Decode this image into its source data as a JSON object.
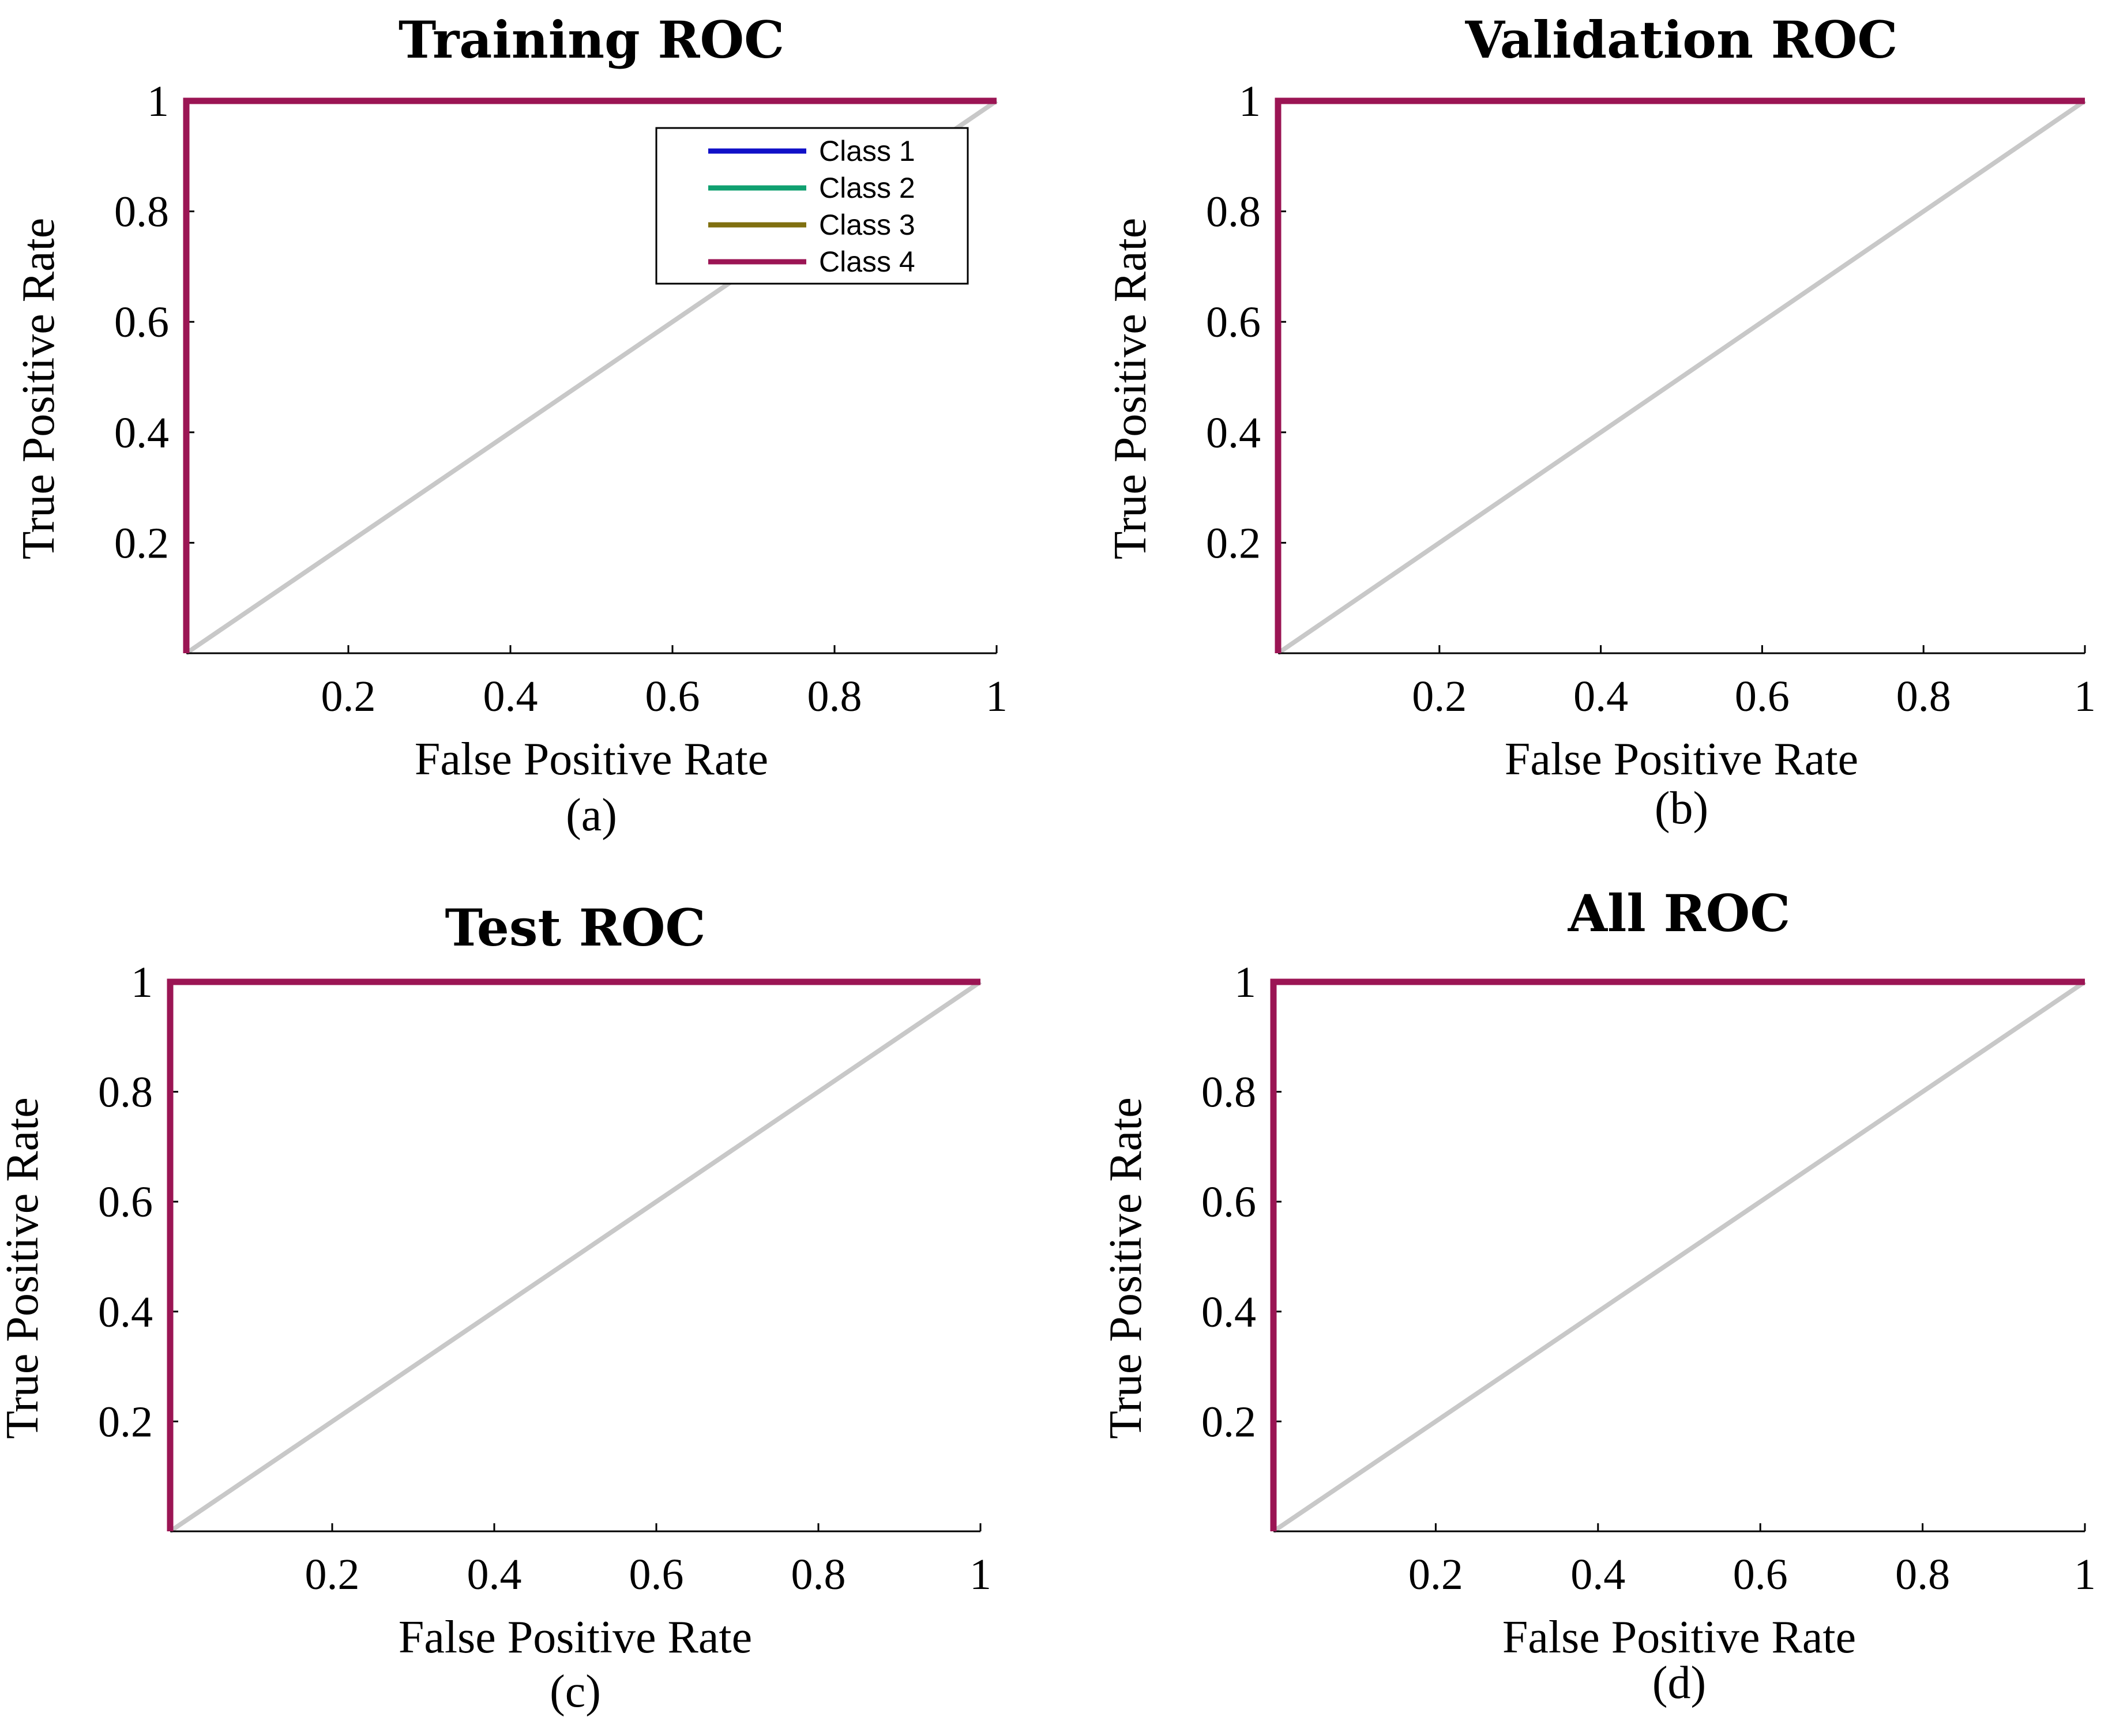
{
  "colors": {
    "class1": "#1010c8",
    "class2": "#10a070",
    "class3": "#807010",
    "class4": "#9b1554",
    "diagonal": "#c8c8c8",
    "axis": "#000000"
  },
  "chart_data": [
    {
      "type": "line",
      "panel": "a",
      "title": "Training ROC",
      "caption": "(a)",
      "xlabel": "False Positive Rate",
      "ylabel": "True Positive Rate",
      "xlim": [
        0,
        1
      ],
      "ylim": [
        0,
        1
      ],
      "xticks": [
        "0.2",
        "0.4",
        "0.6",
        "0.8",
        "1"
      ],
      "yticks": [
        "0.2",
        "0.4",
        "0.6",
        "0.8",
        "1"
      ],
      "legend": {
        "show": true,
        "location": "top-right",
        "entries": [
          "Class 1",
          "Class 2",
          "Class 3",
          "Class 4"
        ]
      },
      "series": [
        {
          "name": "Class 1",
          "color_key": "class1",
          "x": [
            0,
            0,
            1
          ],
          "y": [
            0,
            1,
            1
          ]
        },
        {
          "name": "Class 2",
          "color_key": "class2",
          "x": [
            0,
            0,
            1
          ],
          "y": [
            0,
            1,
            1
          ]
        },
        {
          "name": "Class 3",
          "color_key": "class3",
          "x": [
            0,
            0,
            1
          ],
          "y": [
            0,
            1,
            1
          ]
        },
        {
          "name": "Class 4",
          "color_key": "class4",
          "x": [
            0,
            0,
            1
          ],
          "y": [
            0,
            1,
            1
          ]
        }
      ],
      "reference_line": {
        "x": [
          0,
          1
        ],
        "y": [
          0,
          1
        ]
      }
    },
    {
      "type": "line",
      "panel": "b",
      "title": "Validation ROC",
      "caption": "(b)",
      "xlabel": "False Positive Rate",
      "ylabel": "True Positive Rate",
      "xlim": [
        0,
        1
      ],
      "ylim": [
        0,
        1
      ],
      "xticks": [
        "0.2",
        "0.4",
        "0.6",
        "0.8",
        "1"
      ],
      "yticks": [
        "0.2",
        "0.4",
        "0.6",
        "0.8",
        "1"
      ],
      "legend": {
        "show": false
      },
      "series": [
        {
          "name": "Class 1",
          "color_key": "class1",
          "x": [
            0,
            0,
            1
          ],
          "y": [
            0,
            1,
            1
          ]
        },
        {
          "name": "Class 2",
          "color_key": "class2",
          "x": [
            0,
            0,
            1
          ],
          "y": [
            0,
            1,
            1
          ]
        },
        {
          "name": "Class 3",
          "color_key": "class3",
          "x": [
            0,
            0,
            1
          ],
          "y": [
            0,
            1,
            1
          ]
        },
        {
          "name": "Class 4",
          "color_key": "class4",
          "x": [
            0,
            0,
            1
          ],
          "y": [
            0,
            1,
            1
          ]
        }
      ],
      "reference_line": {
        "x": [
          0,
          1
        ],
        "y": [
          0,
          1
        ]
      }
    },
    {
      "type": "line",
      "panel": "c",
      "title": "Test ROC",
      "caption": "(c)",
      "xlabel": "False Positive Rate",
      "ylabel": "True Positive Rate",
      "xlim": [
        0,
        1
      ],
      "ylim": [
        0,
        1
      ],
      "xticks": [
        "0.2",
        "0.4",
        "0.6",
        "0.8",
        "1"
      ],
      "yticks": [
        "0.2",
        "0.4",
        "0.6",
        "0.8",
        "1"
      ],
      "legend": {
        "show": false
      },
      "series": [
        {
          "name": "Class 1",
          "color_key": "class1",
          "x": [
            0,
            0,
            1
          ],
          "y": [
            0,
            1,
            1
          ]
        },
        {
          "name": "Class 2",
          "color_key": "class2",
          "x": [
            0,
            0,
            1
          ],
          "y": [
            0,
            1,
            1
          ]
        },
        {
          "name": "Class 3",
          "color_key": "class3",
          "x": [
            0,
            0,
            1
          ],
          "y": [
            0,
            1,
            1
          ]
        },
        {
          "name": "Class 4",
          "color_key": "class4",
          "x": [
            0,
            0,
            1
          ],
          "y": [
            0,
            1,
            1
          ]
        }
      ],
      "reference_line": {
        "x": [
          0,
          1
        ],
        "y": [
          0,
          1
        ]
      }
    },
    {
      "type": "line",
      "panel": "d",
      "title": "All ROC",
      "caption": "(d)",
      "xlabel": "False Positive Rate",
      "ylabel": "True Positive Rate",
      "xlim": [
        0,
        1
      ],
      "ylim": [
        0,
        1
      ],
      "xticks": [
        "0.2",
        "0.4",
        "0.6",
        "0.8",
        "1"
      ],
      "yticks": [
        "0.2",
        "0.4",
        "0.6",
        "0.8",
        "1"
      ],
      "legend": {
        "show": false
      },
      "series": [
        {
          "name": "Class 1",
          "color_key": "class1",
          "x": [
            0,
            0,
            1
          ],
          "y": [
            0,
            1,
            1
          ]
        },
        {
          "name": "Class 2",
          "color_key": "class2",
          "x": [
            0,
            0,
            1
          ],
          "y": [
            0,
            1,
            1
          ]
        },
        {
          "name": "Class 3",
          "color_key": "class3",
          "x": [
            0,
            0,
            1
          ],
          "y": [
            0,
            1,
            1
          ]
        },
        {
          "name": "Class 4",
          "color_key": "class4",
          "x": [
            0,
            0,
            1
          ],
          "y": [
            0,
            1,
            1
          ]
        }
      ],
      "reference_line": {
        "x": [
          0,
          1
        ],
        "y": [
          0,
          1
        ]
      }
    }
  ]
}
